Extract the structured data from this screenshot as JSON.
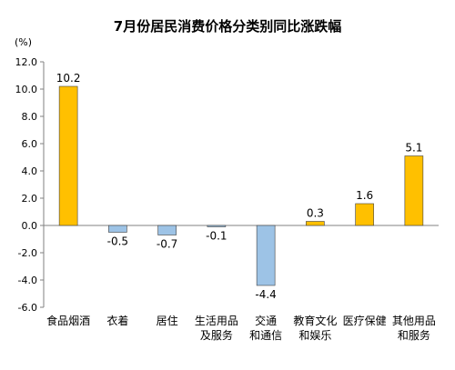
{
  "chart_data": {
    "type": "bar",
    "title": "7月份居民消费价格分类别同比涨跌幅",
    "unit": "(%)",
    "categories": [
      [
        "食品烟酒"
      ],
      [
        "衣着"
      ],
      [
        "居住"
      ],
      [
        "生活用品",
        "及服务"
      ],
      [
        "交通",
        "和通信"
      ],
      [
        "教育文化",
        "和娱乐"
      ],
      [
        "医疗保健"
      ],
      [
        "其他用品",
        "和服务"
      ]
    ],
    "values": [
      10.2,
      -0.5,
      -0.7,
      -0.1,
      -4.4,
      0.3,
      1.6,
      5.1
    ],
    "value_labels": [
      "10.2",
      "-0.5",
      "-0.7",
      "-0.1",
      "-4.4",
      "0.3",
      "1.6",
      "5.1"
    ],
    "ylim": [
      -6.0,
      12.0
    ],
    "yticks": [
      12.0,
      10.0,
      8.0,
      6.0,
      4.0,
      2.0,
      0.0,
      -2.0,
      -4.0,
      -6.0
    ],
    "ytick_labels": [
      "12.0",
      "10.0",
      "8.0",
      "6.0",
      "4.0",
      "2.0",
      "0.0",
      "-2.0",
      "-4.0",
      "-6.0"
    ],
    "grid": false,
    "legend": "none",
    "colors": {
      "positive": "#FFC000",
      "negative": "#9DC3E6",
      "edge": "#404040"
    }
  }
}
